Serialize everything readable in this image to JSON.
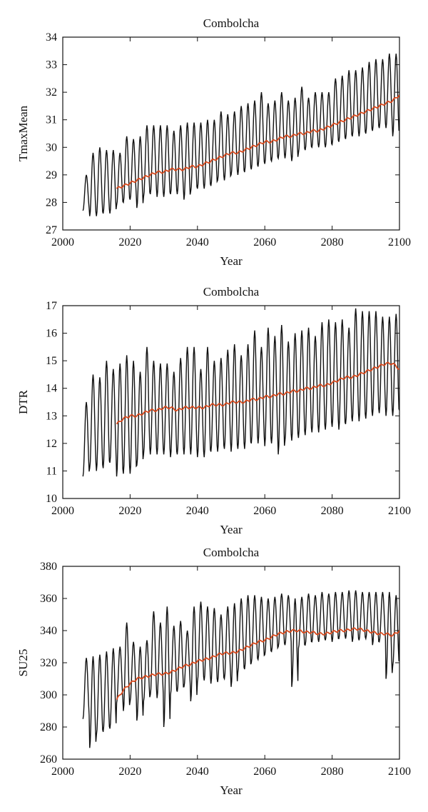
{
  "chart_data": [
    {
      "type": "line",
      "title": "Combolcha",
      "xlabel": "Year",
      "ylabel": "TmaxMean",
      "xlim": [
        2000,
        2100
      ],
      "ylim": [
        27,
        34
      ],
      "x_ticks": [
        2000,
        2020,
        2040,
        2060,
        2080,
        2100
      ],
      "y_ticks": [
        27,
        28,
        29,
        30,
        31,
        32,
        33,
        34
      ],
      "grid": false,
      "legend": "none",
      "series": [
        {
          "color": "#111111",
          "style": "seasonal oscillation",
          "x": [
            2006,
            2008,
            2010,
            2012,
            2014,
            2016,
            2018,
            2020,
            2022,
            2024,
            2026,
            2028,
            2030,
            2032,
            2034,
            2036,
            2038,
            2040,
            2042,
            2044,
            2046,
            2048,
            2050,
            2052,
            2054,
            2056,
            2058,
            2060,
            2062,
            2064,
            2066,
            2068,
            2070,
            2072,
            2074,
            2076,
            2078,
            2080,
            2082,
            2084,
            2086,
            2088,
            2090,
            2092,
            2094,
            2096,
            2098,
            2100
          ],
          "min": [
            27.7,
            27.5,
            27.5,
            27.6,
            27.6,
            27.9,
            28.0,
            28.1,
            27.8,
            28.2,
            28.3,
            28.2,
            28.2,
            28.3,
            28.3,
            28.1,
            28.4,
            28.5,
            28.5,
            28.6,
            28.8,
            28.8,
            29.0,
            29.0,
            29.1,
            29.2,
            29.3,
            29.4,
            29.5,
            29.6,
            29.6,
            29.5,
            29.8,
            29.9,
            30.0,
            30.0,
            30.0,
            30.1,
            30.2,
            30.3,
            30.4,
            30.4,
            30.5,
            30.6,
            30.7,
            30.7,
            30.4,
            31.0
          ],
          "max": [
            29.0,
            29.8,
            30.0,
            29.9,
            29.9,
            29.8,
            30.4,
            30.3,
            30.4,
            30.8,
            30.8,
            30.8,
            30.8,
            30.6,
            30.8,
            30.9,
            30.9,
            30.9,
            31.0,
            31.0,
            31.3,
            31.2,
            31.3,
            31.5,
            31.6,
            31.7,
            32.0,
            31.6,
            31.7,
            32.0,
            31.7,
            31.8,
            32.2,
            31.8,
            32.0,
            32.0,
            32.0,
            32.5,
            32.6,
            32.8,
            32.8,
            32.9,
            33.1,
            33.2,
            33.2,
            33.4,
            33.4,
            33.4
          ]
        },
        {
          "color": "#d94a1e",
          "style": "moving average",
          "x": [
            2016,
            2018,
            2020,
            2022,
            2024,
            2026,
            2028,
            2030,
            2032,
            2034,
            2036,
            2038,
            2040,
            2042,
            2044,
            2046,
            2048,
            2050,
            2052,
            2054,
            2056,
            2058,
            2060,
            2062,
            2064,
            2066,
            2068,
            2070,
            2072,
            2074,
            2076,
            2078,
            2080,
            2082,
            2084,
            2086,
            2088,
            2090,
            2092,
            2094,
            2096,
            2098,
            2100
          ],
          "y": [
            28.5,
            28.6,
            28.7,
            28.8,
            28.9,
            29.0,
            29.1,
            29.1,
            29.2,
            29.2,
            29.2,
            29.3,
            29.3,
            29.4,
            29.5,
            29.6,
            29.7,
            29.8,
            29.8,
            29.9,
            30.0,
            30.1,
            30.2,
            30.2,
            30.3,
            30.4,
            30.4,
            30.5,
            30.5,
            30.6,
            30.6,
            30.7,
            30.8,
            30.9,
            31.0,
            31.1,
            31.2,
            31.3,
            31.4,
            31.5,
            31.6,
            31.7,
            31.9
          ]
        }
      ]
    },
    {
      "type": "line",
      "title": "Combolcha",
      "xlabel": "Year",
      "ylabel": "DTR",
      "xlim": [
        2000,
        2100
      ],
      "ylim": [
        10,
        17
      ],
      "x_ticks": [
        2000,
        2020,
        2040,
        2060,
        2080,
        2100
      ],
      "y_ticks": [
        10,
        11,
        12,
        13,
        14,
        15,
        16,
        17
      ],
      "grid": false,
      "legend": "none",
      "series": [
        {
          "color": "#111111",
          "style": "seasonal oscillation",
          "x": [
            2006,
            2008,
            2010,
            2012,
            2014,
            2016,
            2018,
            2020,
            2022,
            2024,
            2026,
            2028,
            2030,
            2032,
            2034,
            2036,
            2038,
            2040,
            2042,
            2044,
            2046,
            2048,
            2050,
            2052,
            2054,
            2056,
            2058,
            2060,
            2062,
            2064,
            2066,
            2068,
            2070,
            2072,
            2074,
            2076,
            2078,
            2080,
            2082,
            2084,
            2086,
            2088,
            2090,
            2092,
            2094,
            2096,
            2098,
            2100
          ],
          "min": [
            10.8,
            11.1,
            11.0,
            11.1,
            11.3,
            10.8,
            10.9,
            10.9,
            11.2,
            11.6,
            11.6,
            11.6,
            11.6,
            11.5,
            11.6,
            11.6,
            11.6,
            11.5,
            11.5,
            11.7,
            11.7,
            11.8,
            11.7,
            11.8,
            11.8,
            12.0,
            12.0,
            11.9,
            12.0,
            11.6,
            12.1,
            12.1,
            12.2,
            12.3,
            12.4,
            12.4,
            12.5,
            12.6,
            12.5,
            12.7,
            12.8,
            12.8,
            12.9,
            13.0,
            13.1,
            13.0,
            13.0,
            13.2
          ],
          "max": [
            13.5,
            14.5,
            14.4,
            15.0,
            14.7,
            14.9,
            15.2,
            15.0,
            14.6,
            15.5,
            15.0,
            14.9,
            14.9,
            14.6,
            15.1,
            15.5,
            15.5,
            14.7,
            15.5,
            15.0,
            15.1,
            15.4,
            15.6,
            15.2,
            15.6,
            16.1,
            15.5,
            16.2,
            15.9,
            16.3,
            15.7,
            16.0,
            16.1,
            16.2,
            15.9,
            16.4,
            16.5,
            16.4,
            16.5,
            16.2,
            16.9,
            16.8,
            16.8,
            16.8,
            16.6,
            16.6,
            16.7,
            16.6
          ]
        },
        {
          "color": "#d94a1e",
          "style": "moving average",
          "x": [
            2016,
            2018,
            2020,
            2022,
            2024,
            2026,
            2028,
            2030,
            2032,
            2034,
            2036,
            2038,
            2040,
            2042,
            2044,
            2046,
            2048,
            2050,
            2052,
            2054,
            2056,
            2058,
            2060,
            2062,
            2064,
            2066,
            2068,
            2070,
            2072,
            2074,
            2076,
            2078,
            2080,
            2082,
            2084,
            2086,
            2088,
            2090,
            2092,
            2094,
            2096,
            2098,
            2100
          ],
          "y": [
            12.7,
            12.9,
            13.0,
            13.0,
            13.1,
            13.2,
            13.2,
            13.3,
            13.3,
            13.2,
            13.3,
            13.3,
            13.3,
            13.3,
            13.4,
            13.4,
            13.4,
            13.5,
            13.5,
            13.5,
            13.6,
            13.6,
            13.7,
            13.7,
            13.8,
            13.8,
            13.9,
            13.9,
            14.0,
            14.0,
            14.1,
            14.1,
            14.2,
            14.3,
            14.4,
            14.4,
            14.5,
            14.6,
            14.7,
            14.8,
            14.9,
            14.9,
            14.7
          ]
        }
      ]
    },
    {
      "type": "line",
      "title": "Combolcha",
      "xlabel": "Year",
      "ylabel": "SU25",
      "xlim": [
        2000,
        2100
      ],
      "ylim": [
        260,
        380
      ],
      "x_ticks": [
        2000,
        2020,
        2040,
        2060,
        2080,
        2100
      ],
      "y_ticks": [
        260,
        280,
        300,
        320,
        340,
        360,
        380
      ],
      "grid": false,
      "legend": "none",
      "series": [
        {
          "color": "#111111",
          "style": "seasonal oscillation",
          "x": [
            2006,
            2008,
            2010,
            2012,
            2014,
            2016,
            2018,
            2020,
            2022,
            2024,
            2026,
            2028,
            2030,
            2032,
            2034,
            2036,
            2038,
            2040,
            2042,
            2044,
            2046,
            2048,
            2050,
            2052,
            2054,
            2056,
            2058,
            2060,
            2062,
            2064,
            2066,
            2068,
            2070,
            2072,
            2074,
            2076,
            2078,
            2080,
            2082,
            2084,
            2086,
            2088,
            2090,
            2092,
            2094,
            2096,
            2098,
            2100
          ],
          "min": [
            285,
            267,
            275,
            277,
            279,
            295,
            290,
            296,
            284,
            296,
            300,
            298,
            280,
            300,
            302,
            305,
            296,
            308,
            309,
            307,
            308,
            310,
            305,
            314,
            316,
            320,
            322,
            325,
            327,
            330,
            331,
            305,
            329,
            331,
            333,
            333,
            334,
            333,
            335,
            335,
            333,
            334,
            335,
            331,
            333,
            310,
            318,
            338
          ],
          "max": [
            323,
            324,
            325,
            327,
            329,
            330,
            345,
            333,
            330,
            334,
            352,
            345,
            355,
            343,
            346,
            340,
            355,
            358,
            355,
            354,
            350,
            355,
            357,
            360,
            362,
            362,
            361,
            360,
            361,
            363,
            362,
            360,
            361,
            363,
            362,
            364,
            363,
            364,
            364,
            365,
            365,
            364,
            364,
            364,
            364,
            364,
            362,
            361
          ]
        },
        {
          "color": "#d94a1e",
          "style": "moving average",
          "x": [
            2016,
            2018,
            2020,
            2022,
            2024,
            2026,
            2028,
            2030,
            2032,
            2034,
            2036,
            2038,
            2040,
            2042,
            2044,
            2046,
            2048,
            2050,
            2052,
            2054,
            2056,
            2058,
            2060,
            2062,
            2064,
            2066,
            2068,
            2070,
            2072,
            2074,
            2076,
            2078,
            2080,
            2082,
            2084,
            2086,
            2088,
            2090,
            2092,
            2094,
            2096,
            2098,
            2100
          ],
          "y": [
            297,
            303,
            307,
            310,
            311,
            312,
            313,
            313,
            314,
            316,
            318,
            319,
            321,
            322,
            323,
            325,
            326,
            326,
            327,
            329,
            331,
            333,
            334,
            336,
            338,
            339,
            340,
            340,
            339,
            339,
            338,
            338,
            339,
            340,
            340,
            341,
            341,
            340,
            339,
            338,
            338,
            337,
            340
          ]
        }
      ]
    }
  ]
}
